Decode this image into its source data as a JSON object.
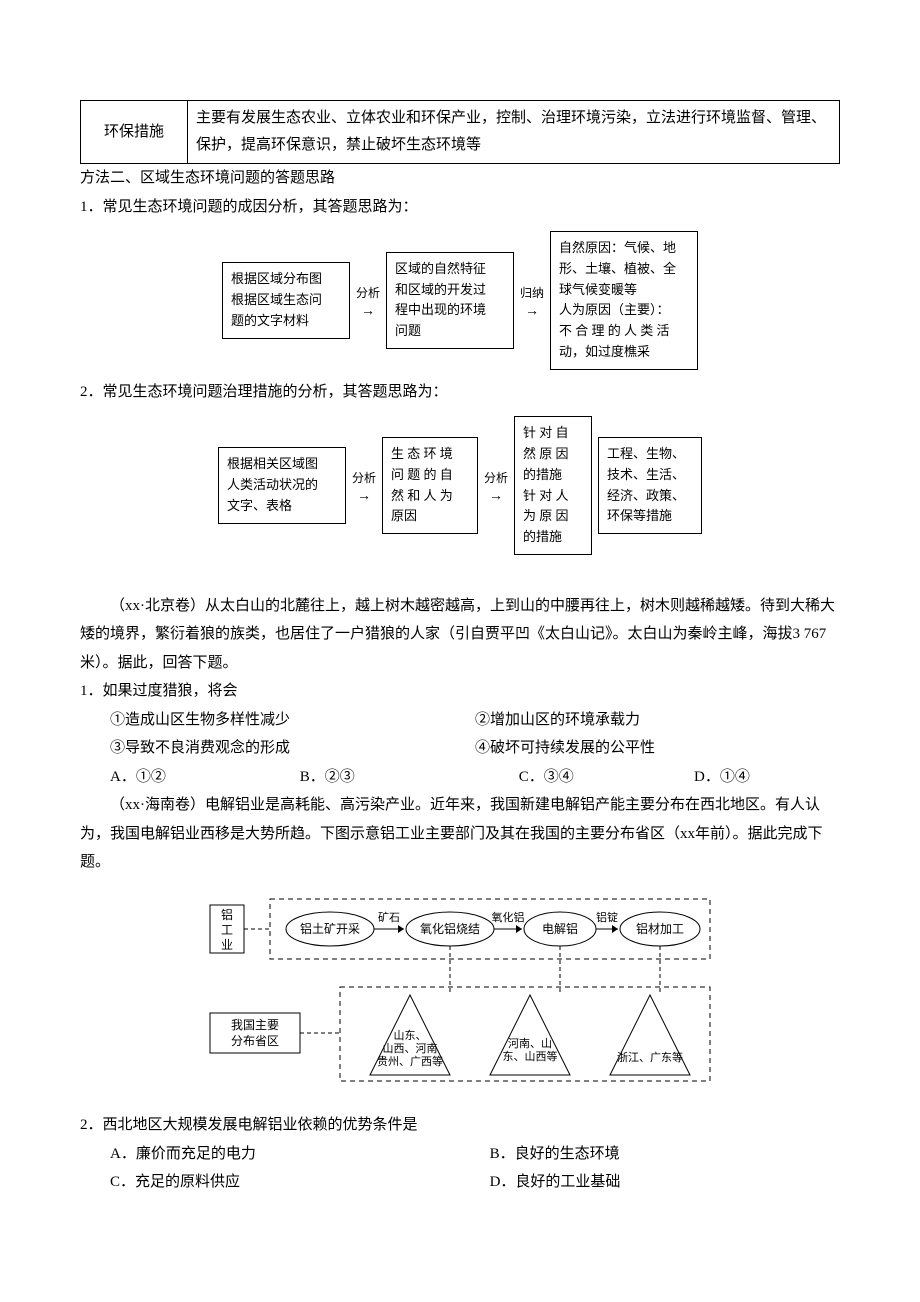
{
  "table": {
    "r1c1": "环保措施",
    "r1c2": "主要有发展生态农业、立体农业和环保产业，控制、治理环境污染，立法进行环境监督、管理、保护，提高环保意识，禁止破坏生态环境等"
  },
  "method2_title": "方法二、区域生态环境问题的答题思路",
  "step1_title": "1．常见生态环境问题的成因分析，其答题思路为：",
  "flow1": {
    "b1": "根据区域分布图\n根据区域生态问\n题的文字材料",
    "a1": "分析",
    "b2": "区域的自然特征\n和区域的开发过\n程中出现的环境\n问题",
    "a2": "归纳",
    "b3": "自然原因：气候、地\n形、土壤、植被、全\n球气候变暖等\n人为原因（主要）：\n不 合 理 的 人 类 活\n动，如过度樵采"
  },
  "step2_title": "2．常见生态环境问题治理措施的分析，其答题思路为：",
  "flow2": {
    "b1": "根据相关区域图\n人类活动状况的\n文字、表格",
    "a1": "分析",
    "b2": "生 态 环 境\n问 题 的 自\n然 和 人 为\n原因",
    "a2": "分析",
    "b3": "针 对 自\n然 原 因\n的措施\n针 对 人\n为 原 因\n的措施",
    "b4": "工程、生物、\n技术、生活、\n经济、政策、\n环保等措施"
  },
  "passage1": "（xx·北京卷）从太白山的北麓往上，越上树木越密越高，上到山的中腰再往上，树木则越稀越矮。待到大稀大矮的境界，繁衍着狼的族类，也居住了一户猎狼的人家（引自贾平凹《太白山记》。太白山为秦岭主峰，海拔3 767米）。据此，回答下题。",
  "q1": {
    "stem": "1．如果过度猎狼，将会",
    "c1": "①造成山区生物多样性减少",
    "c2": "②增加山区的环境承载力",
    "c3": "③导致不良消费观念的形成",
    "c4": "④破坏可持续发展的公平性",
    "A": "A．①②",
    "B": "B．②③",
    "C": "C．③④",
    "D": "D．①④"
  },
  "passage2": "（xx·海南卷）电解铝业是高耗能、高污染产业。近年来，我国新建电解铝产能主要分布在西北地区。有人认为，我国电解铝业西移是大势所趋。下图示意铝工业主要部门及其在我国的主要分布省区（xx年前）。据此完成下题。",
  "diagram": {
    "left1": "铝\n工\n业",
    "n1": "铝土矿开采",
    "e1": "矿石",
    "n2": "氧化铝烧结",
    "e2": "氧化铝",
    "n3": "电解铝",
    "e3": "铝锭",
    "n4": "铝材加工",
    "left2": "我国主要\n分布省区",
    "t1": "山东、\n山西、河南\n贵州、广西等",
    "t2": "河南、山\n东、山西等",
    "t3": "浙江、广东等"
  },
  "q2": {
    "stem": "2．西北地区大规模发展电解铝业依赖的优势条件是",
    "A": "A．廉价而充足的电力",
    "B": "B．良好的生态环境",
    "C": "C．充足的原料供应",
    "D": "D．良好的工业基础"
  }
}
